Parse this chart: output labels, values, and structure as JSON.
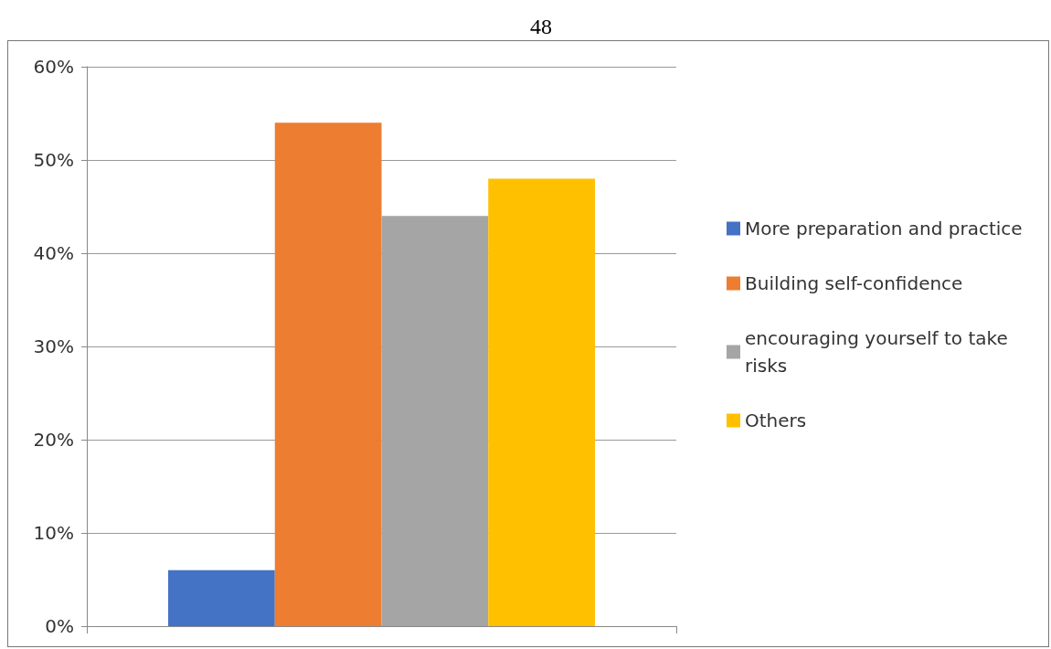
{
  "chart_data": {
    "type": "bar",
    "annotations": [
      "48"
    ],
    "categories": [
      null
    ],
    "series": [
      {
        "name": "More preparation and practice",
        "color": "#4472c4",
        "values": [
          6
        ]
      },
      {
        "name": "Building self-confidence",
        "color": "#ed7d31",
        "values": [
          54
        ]
      },
      {
        "name": "encouraging yourself to take risks",
        "color": "#a5a5a5",
        "values": [
          44
        ]
      },
      {
        "name": "Others",
        "color": "#ffc000",
        "values": [
          48
        ]
      }
    ],
    "ylim": [
      0,
      60
    ],
    "yticks": [
      {
        "value": 0,
        "label": "0%"
      },
      {
        "value": 10,
        "label": "10%"
      },
      {
        "value": 20,
        "label": "20%"
      },
      {
        "value": 30,
        "label": "30%"
      },
      {
        "value": 40,
        "label": "40%"
      },
      {
        "value": 50,
        "label": "50%"
      },
      {
        "value": 60,
        "label": "60%"
      }
    ],
    "grid": "y",
    "legend": "right"
  }
}
